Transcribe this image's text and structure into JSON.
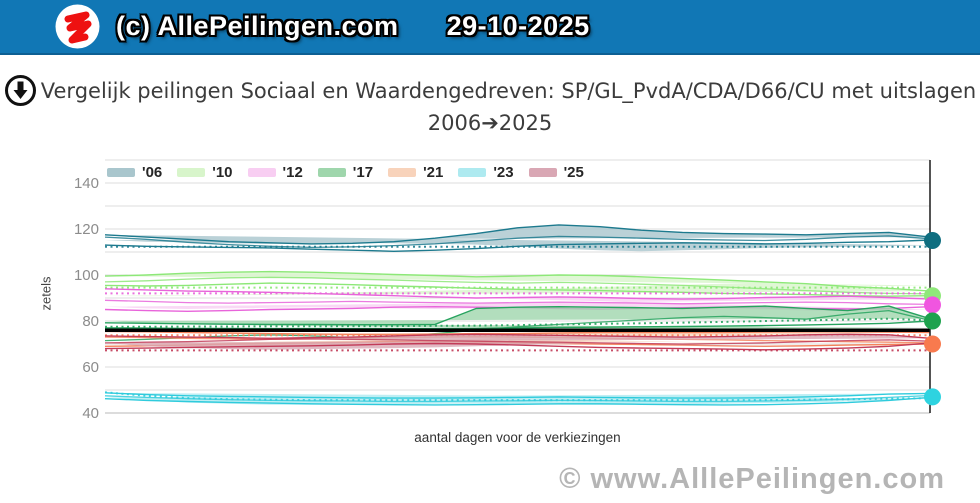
{
  "header": {
    "site_label": "(c) AllePeilingen.com",
    "date": "29-10-2025",
    "bg_color": "#1177b5",
    "logo_icon": "red-scribble-logo"
  },
  "title": {
    "icon": "download-circle-icon",
    "line1": "Vergelijk peilingen Sociaal en Waardengedreven: SP/GL_PvdA/CDA/D66/CU met uitslagen",
    "line2": "2006➔2025"
  },
  "watermark": "© www.AlllePeilingen.com",
  "chart_data": {
    "type": "area",
    "title": "Vergelijk peilingen Sociaal en Waardengedreven: SP/GL_PvdA/CDA/D66/CU met uitslagen 2006➔2025",
    "ylabel": "zetels",
    "xlabel": "aantal dagen voor de verkiezingen",
    "ylim": [
      40,
      150
    ],
    "yticks": [
      40,
      60,
      80,
      100,
      120,
      140
    ],
    "grid_step": 10,
    "grid_color": "#dedede",
    "legend_position": "top",
    "x_axis_note": "x = days before election, election day at right edge (vertical line), no x tick labels shown",
    "majority_line": {
      "value": 76,
      "color": "#000000"
    },
    "election_day_line_color": "#1a1a1a",
    "series": [
      {
        "year": "'06",
        "line_color": "#1d7a8e",
        "fill_color": "#a9c6cd",
        "dot_color": "#0f6e80",
        "upper": [
          117.5,
          116.5,
          115.5,
          114.5,
          114,
          113.5,
          113.8,
          114.5,
          116,
          118,
          120.5,
          121.8,
          121,
          119.5,
          118.5,
          118,
          117.8,
          117.5,
          118,
          118.5,
          116.5
        ],
        "lower": [
          113,
          112.5,
          112.2,
          112,
          111.8,
          111.2,
          110.8,
          110.3,
          110.8,
          111.5,
          112.5,
          113.2,
          113.5,
          113.8,
          114,
          113.8,
          113.5,
          113.8,
          114.2,
          114.5,
          115.2
        ],
        "mid": [
          116.5,
          115.5,
          114.2,
          113.2,
          112.5,
          112,
          112.2,
          112.8,
          113.5,
          114.8,
          116,
          116.8,
          116.5,
          116,
          115.5,
          115.2,
          115,
          115.5,
          116.5,
          117,
          115.8
        ],
        "dotted": 112.3,
        "result": 115
      },
      {
        "year": "'10",
        "line_color": "#8de878",
        "fill_color": "#d8f5cb",
        "dot_color": "#8fe87a",
        "upper": [
          99.5,
          100,
          100.8,
          101.2,
          101.5,
          101.2,
          100.8,
          100.2,
          99.8,
          99.2,
          99.5,
          100,
          99.8,
          99.2,
          98.5,
          97.8,
          97,
          96.2,
          95,
          94.2,
          93
        ],
        "lower": [
          95.5,
          95.2,
          95.5,
          96,
          96.5,
          96.2,
          95.8,
          95.2,
          94.8,
          94.2,
          93.8,
          93.5,
          93.2,
          92.8,
          92.5,
          92,
          91.8,
          91.5,
          91,
          90.8,
          91
        ],
        "mid": [
          97,
          97.5,
          98.2,
          98.8,
          99,
          98.8,
          98.2,
          97.8,
          97.2,
          96.8,
          96.5,
          96.8,
          96.5,
          96,
          95.5,
          94.8,
          94,
          93.2,
          92.5,
          92,
          91.8
        ],
        "dotted": 94.5,
        "result": 91
      },
      {
        "year": "'12",
        "line_color": "#e864da",
        "fill_color": "#f8cef2",
        "dot_color": "#f055e0",
        "upper": [
          94,
          93.5,
          93,
          92.8,
          92.5,
          92,
          91.5,
          91,
          90.5,
          90,
          90.2,
          90.5,
          90.2,
          89.8,
          89.5,
          89.8,
          90.2,
          90.5,
          90.8,
          90.2,
          89.5
        ],
        "lower": [
          85,
          84.5,
          84.2,
          84.5,
          85,
          85.2,
          85.5,
          86,
          86.2,
          86,
          85.8,
          85.5,
          85.2,
          85.5,
          85.8,
          86,
          85.8,
          85.5,
          85.2,
          85.5,
          86.2
        ],
        "mid": [
          89,
          88.5,
          88,
          87.8,
          88,
          88.2,
          88.5,
          88.2,
          88,
          87.8,
          88,
          88.2,
          88,
          87.8,
          87.5,
          87.8,
          88,
          88.2,
          88,
          87.5,
          87.2
        ],
        "dotted": 92,
        "result": 87
      },
      {
        "year": "'17",
        "line_color": "#27a35f",
        "fill_color": "#9fd6ac",
        "dot_color": "#1ea24e",
        "upper": [
          79.2,
          79,
          78.8,
          78.6,
          78.5,
          78.5,
          78.4,
          78.4,
          78.5,
          85.5,
          86,
          86.2,
          86,
          85.8,
          85.5,
          86,
          86.5,
          85.5,
          84.5,
          86.5,
          81
        ],
        "lower": [
          77,
          76.9,
          76.8,
          76.8,
          76.7,
          76.7,
          76.7,
          76.7,
          76.7,
          76.8,
          77,
          77.2,
          77.3,
          77.5,
          77.6,
          77.8,
          78,
          78.3,
          78.6,
          79,
          80
        ],
        "mid": [
          71.5,
          72,
          72.8,
          73.5,
          74,
          73.5,
          72.8,
          73.2,
          74.5,
          76,
          77.5,
          78.5,
          79.5,
          80.5,
          81.5,
          82,
          81.5,
          80.8,
          83,
          84.5,
          80.2
        ],
        "dotted": [
          77.5,
          77.5,
          77.6,
          77.6,
          77.7,
          77.7,
          77.8,
          77.8,
          77.9,
          78,
          78.2,
          78.5,
          78.8,
          79,
          79.3,
          79.6,
          80,
          80.3,
          80.6,
          81,
          80.2
        ],
        "result": 80
      },
      {
        "year": "'21",
        "line_color": "#f4825a",
        "fill_color": "#f8d3bb",
        "dot_color": "#f87a4e",
        "upper": [
          75.5,
          75.3,
          75,
          74.8,
          74.5,
          74.3,
          74.2,
          74.2,
          74.3,
          74.5,
          74.5,
          74.8,
          75,
          75,
          75,
          75,
          75.2,
          75.3,
          75.3,
          75.2,
          75
        ],
        "lower": [
          69,
          69.2,
          69.5,
          70,
          70.2,
          70.5,
          70.8,
          71,
          71,
          70.8,
          70.5,
          70.2,
          70,
          69.8,
          69.5,
          69.2,
          69,
          69.2,
          69.5,
          69.8,
          70
        ],
        "mid": [
          73,
          72.8,
          72.5,
          72.2,
          72,
          72.2,
          72.5,
          72.8,
          73,
          73.2,
          73,
          72.8,
          72.5,
          72.2,
          72,
          71.8,
          71.5,
          71.2,
          71,
          70.8,
          70.5
        ],
        "dotted": 73.8,
        "result": 70
      },
      {
        "year": "'23",
        "line_color": "#2fcbdc",
        "fill_color": "#aeeaf0",
        "dot_color": "#2ed3e0",
        "upper": [
          48.8,
          48,
          47.5,
          47.2,
          47,
          46.8,
          46.6,
          46.5,
          46.5,
          46.6,
          46.8,
          47,
          46.8,
          46.6,
          46.5,
          46.5,
          46.6,
          47,
          47.5,
          48.2,
          48.5
        ],
        "lower": [
          46.2,
          45.5,
          45,
          44.6,
          44.3,
          44,
          43.8,
          43.6,
          43.5,
          43.6,
          43.8,
          44,
          44,
          43.8,
          43.6,
          43.5,
          43.6,
          44,
          44.5,
          45.5,
          46.8
        ],
        "mid": [
          47.5,
          46.8,
          46.2,
          45.8,
          45.5,
          45.3,
          45.2,
          45,
          45,
          45.2,
          45.3,
          45.5,
          45.4,
          45.2,
          45,
          45,
          45.2,
          45.5,
          46,
          46.8,
          47.6
        ],
        "dotted": [
          49,
          47.5,
          46.5,
          46,
          45.8,
          45.6,
          45.6,
          45.6,
          45.6,
          45.6,
          45.6,
          45.6,
          45.6,
          45.6,
          45.6,
          45.6,
          45.6,
          45.8,
          46,
          46.2,
          46.5
        ],
        "result": 47
      },
      {
        "year": "'25",
        "line_color": "#c23b58",
        "fill_color": "#d9a7b4",
        "dot_color": null,
        "upper": [
          73.5,
          73.2,
          73,
          72.8,
          72.5,
          72.8,
          73,
          73.5,
          74,
          74.2,
          74,
          73.8,
          73.5,
          73.2,
          73,
          73.2,
          73.5,
          74,
          74.2,
          74,
          72.5
        ],
        "lower": [
          68,
          68.2,
          68.5,
          68.8,
          69,
          69.2,
          69.5,
          70,
          70.2,
          70,
          69.5,
          69,
          68.5,
          68.2,
          68,
          67.8,
          67.5,
          67.8,
          68.2,
          69,
          70.5
        ],
        "mid": [
          70.5,
          70.8,
          71,
          71.5,
          72,
          72.2,
          72,
          71.8,
          71.5,
          71.2,
          71,
          70.8,
          70.5,
          70.2,
          70,
          70.2,
          70.5,
          71,
          71.5,
          71.8,
          71.2
        ],
        "dotted": 67.2,
        "result": null
      }
    ]
  }
}
